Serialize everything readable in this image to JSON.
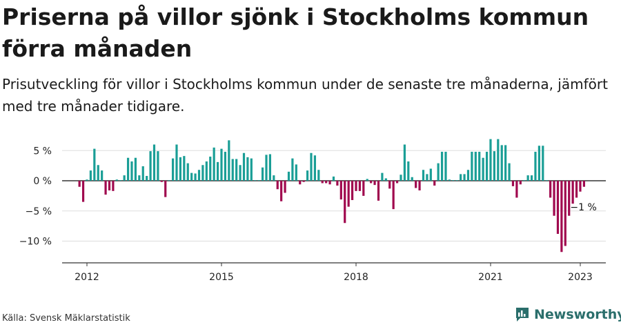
{
  "header": {
    "title": "Priserna på villor sjönk i Stockholms kommun förra månaden",
    "subtitle": "Prisutveckling för villor i Stockholms kommun under de senaste tre månaderna, jämfört med tre månader tidigare."
  },
  "footer": {
    "source": "Källa: Svensk Mäklarstatistik",
    "brand": "Newsworthy"
  },
  "icons": {
    "brand_logo": "bar-chart-logo-icon"
  },
  "colors": {
    "positive": "#1a9e96",
    "negative": "#a0084e",
    "grid": "#dddddd",
    "axis": "#333333",
    "brand": "#2a6e6b"
  },
  "chart_data": {
    "type": "bar",
    "ylabel": "",
    "xlabel": "",
    "ylim": [
      -14,
      8
    ],
    "y_ticks": [
      5,
      0,
      -5,
      -10
    ],
    "y_tick_labels": [
      "5 %",
      "0 %",
      "−5 %",
      "−10 %"
    ],
    "x_ticks": [
      2012,
      2015,
      2018,
      2021,
      2023
    ],
    "x_tick_labels": [
      "2012",
      "2015",
      "2018",
      "2021",
      "2023"
    ],
    "x_start": 2011.8333,
    "x_step_years": 0.08333,
    "grid": true,
    "annotation": {
      "label": "−1 %",
      "index": 135
    },
    "series": [
      {
        "values": [
          -1,
          -3.5,
          0.2,
          1.7,
          5.3,
          2.6,
          1.7,
          -2.3,
          -1.6,
          -1.7,
          0.2,
          0.1,
          0.9,
          3.8,
          3.2,
          3.8,
          0.9,
          2.4,
          0.8,
          4.9,
          6.0,
          4.9,
          -0.2,
          -2.7,
          0.1,
          3.7,
          6.0,
          3.9,
          4.1,
          2.9,
          1.3,
          1.2,
          1.8,
          2.6,
          3.2,
          4.0,
          5.5,
          3.1,
          5.3,
          4.8,
          6.7,
          3.6,
          3.6,
          2.6,
          4.6,
          3.9,
          3.7,
          0.1,
          0.1,
          2.2,
          4.3,
          4.4,
          0.9,
          -1.4,
          -3.4,
          -2.0,
          1.5,
          3.7,
          2.7,
          -0.6,
          -0.2,
          1.7,
          4.6,
          4.2,
          1.8,
          -0.4,
          -0.4,
          -0.6,
          0.7,
          -0.8,
          -3.1,
          -7.0,
          -4.3,
          -3.2,
          -1.7,
          -1.7,
          -2.5,
          0.3,
          -0.4,
          -0.7,
          -3.3,
          1.3,
          0.4,
          -1.3,
          -4.7,
          -0.4,
          1.0,
          6.0,
          3.2,
          0.6,
          -1.2,
          -1.6,
          1.8,
          1.1,
          2.0,
          -0.8,
          2.9,
          4.8,
          4.8,
          0.2,
          0.1,
          0.1,
          1.1,
          1.1,
          1.8,
          4.8,
          4.8,
          4.8,
          3.8,
          4.8,
          6.9,
          4.9,
          6.9,
          5.9,
          5.9,
          2.9,
          -0.9,
          -2.8,
          -0.6,
          0.1,
          0.9,
          0.9,
          4.8,
          5.8,
          5.8,
          0.1,
          -2.8,
          -5.8,
          -8.8,
          -11.8,
          -10.8,
          -5.8,
          -3.8,
          -2.8,
          -1.8,
          -1
        ]
      }
    ]
  }
}
